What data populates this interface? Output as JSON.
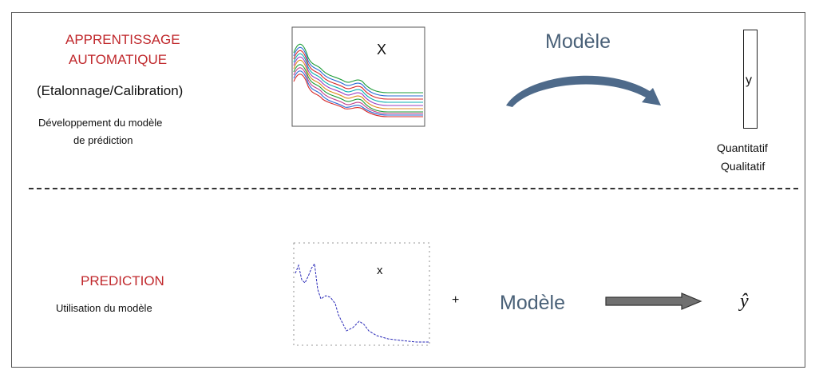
{
  "top": {
    "title_line1": "APPRENTISSAGE",
    "title_line2": "AUTOMATIQUE",
    "subtitle": "(Etalonnage/Calibration)",
    "description_line1": "Développement du modèle",
    "description_line2": "de prédiction",
    "plot_label": "X",
    "model_label": "Modèle",
    "vector_label": "y",
    "type_line1": "Quantitatif",
    "type_line2": "Qualitatif"
  },
  "bottom": {
    "title": "PREDICTION",
    "description": "Utilisation du modèle",
    "plot_label": "x",
    "plus": "+",
    "model_label": "Modèle",
    "output_label": "ŷ"
  },
  "colors": {
    "title_red": "#c0282c",
    "model_blue": "#4a6178",
    "arrow_blue": "#4e6a8a",
    "arrow_gray": "#707070",
    "spectrum_line": "#2a2ab8"
  },
  "icons": [
    "curved-arrow-icon",
    "right-arrow-icon"
  ]
}
